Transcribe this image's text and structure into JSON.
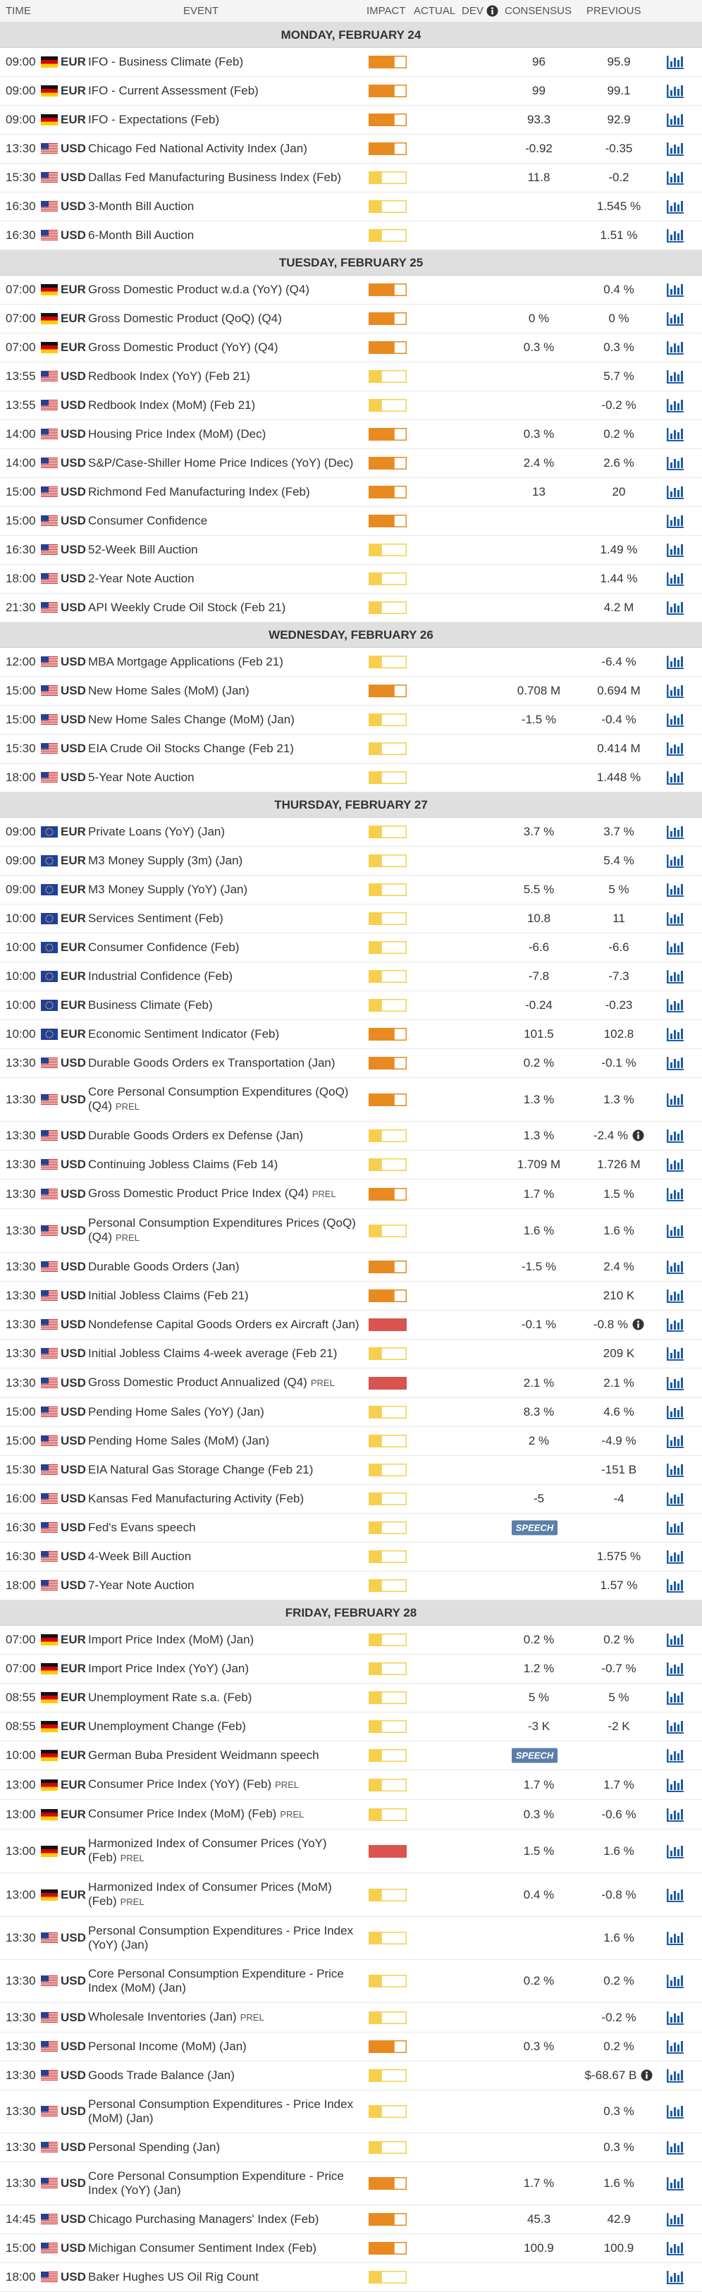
{
  "header": {
    "columns": [
      "TIME",
      "EVENT",
      "IMPACT",
      "ACTUAL",
      "DEV",
      "CONSENSUS",
      "PREVIOUS"
    ]
  },
  "days": [
    {
      "label": "MONDAY, FEBRUARY 24",
      "events": [
        {
          "t": "09:00",
          "f": "de",
          "c": "EUR",
          "n": "IFO - Business Climate (Feb)",
          "i": "medium",
          "cons": "96",
          "prev": "95.9"
        },
        {
          "t": "09:00",
          "f": "de",
          "c": "EUR",
          "n": "IFO - Current Assessment (Feb)",
          "i": "medium",
          "cons": "99",
          "prev": "99.1"
        },
        {
          "t": "09:00",
          "f": "de",
          "c": "EUR",
          "n": "IFO - Expectations (Feb)",
          "i": "medium",
          "cons": "93.3",
          "prev": "92.9"
        },
        {
          "t": "13:30",
          "f": "us",
          "c": "USD",
          "n": "Chicago Fed National Activity Index (Jan)",
          "i": "medium",
          "cons": "-0.92",
          "prev": "-0.35"
        },
        {
          "t": "15:30",
          "f": "us",
          "c": "USD",
          "n": "Dallas Fed Manufacturing Business Index (Feb)",
          "i": "low",
          "cons": "11.8",
          "prev": "-0.2"
        },
        {
          "t": "16:30",
          "f": "us",
          "c": "USD",
          "n": "3-Month Bill Auction",
          "i": "low",
          "prev": "1.545 %"
        },
        {
          "t": "16:30",
          "f": "us",
          "c": "USD",
          "n": "6-Month Bill Auction",
          "i": "low",
          "prev": "1.51 %"
        }
      ]
    },
    {
      "label": "TUESDAY, FEBRUARY 25",
      "events": [
        {
          "t": "07:00",
          "f": "de",
          "c": "EUR",
          "n": "Gross Domestic Product w.d.a (YoY) (Q4)",
          "i": "medium",
          "prev": "0.4 %"
        },
        {
          "t": "07:00",
          "f": "de",
          "c": "EUR",
          "n": "Gross Domestic Product (QoQ) (Q4)",
          "i": "medium",
          "cons": "0 %",
          "prev": "0 %"
        },
        {
          "t": "07:00",
          "f": "de",
          "c": "EUR",
          "n": "Gross Domestic Product (YoY) (Q4)",
          "i": "medium",
          "cons": "0.3 %",
          "prev": "0.3 %"
        },
        {
          "t": "13:55",
          "f": "us",
          "c": "USD",
          "n": "Redbook Index (YoY) (Feb 21)",
          "i": "low",
          "prev": "5.7 %"
        },
        {
          "t": "13:55",
          "f": "us",
          "c": "USD",
          "n": "Redbook Index (MoM) (Feb 21)",
          "i": "low",
          "prev": "-0.2 %"
        },
        {
          "t": "14:00",
          "f": "us",
          "c": "USD",
          "n": "Housing Price Index (MoM) (Dec)",
          "i": "medium",
          "cons": "0.3 %",
          "prev": "0.2 %"
        },
        {
          "t": "14:00",
          "f": "us",
          "c": "USD",
          "n": "S&P/Case-Shiller Home Price Indices (YoY) (Dec)",
          "i": "medium",
          "cons": "2.4 %",
          "prev": "2.6 %"
        },
        {
          "t": "15:00",
          "f": "us",
          "c": "USD",
          "n": "Richmond Fed Manufacturing Index (Feb)",
          "i": "medium",
          "cons": "13",
          "prev": "20"
        },
        {
          "t": "15:00",
          "f": "us",
          "c": "USD",
          "n": "Consumer Confidence",
          "i": "medium"
        },
        {
          "t": "16:30",
          "f": "us",
          "c": "USD",
          "n": "52-Week Bill Auction",
          "i": "low",
          "prev": "1.49 %"
        },
        {
          "t": "18:00",
          "f": "us",
          "c": "USD",
          "n": "2-Year Note Auction",
          "i": "low",
          "prev": "1.44 %"
        },
        {
          "t": "21:30",
          "f": "us",
          "c": "USD",
          "n": "API Weekly Crude Oil Stock (Feb 21)",
          "i": "low",
          "prev": "4.2 M"
        }
      ]
    },
    {
      "label": "WEDNESDAY, FEBRUARY 26",
      "events": [
        {
          "t": "12:00",
          "f": "us",
          "c": "USD",
          "n": "MBA Mortgage Applications (Feb 21)",
          "i": "low",
          "prev": "-6.4 %"
        },
        {
          "t": "15:00",
          "f": "us",
          "c": "USD",
          "n": "New Home Sales (MoM) (Jan)",
          "i": "medium",
          "cons": "0.708 M",
          "prev": "0.694 M"
        },
        {
          "t": "15:00",
          "f": "us",
          "c": "USD",
          "n": "New Home Sales Change (MoM) (Jan)",
          "i": "low",
          "cons": "-1.5 %",
          "prev": "-0.4 %"
        },
        {
          "t": "15:30",
          "f": "us",
          "c": "USD",
          "n": "EIA Crude Oil Stocks Change (Feb 21)",
          "i": "low",
          "prev": "0.414 M"
        },
        {
          "t": "18:00",
          "f": "us",
          "c": "USD",
          "n": "5-Year Note Auction",
          "i": "low",
          "prev": "1.448 %"
        }
      ]
    },
    {
      "label": "THURSDAY, FEBRUARY 27",
      "events": [
        {
          "t": "09:00",
          "f": "eu",
          "c": "EUR",
          "n": "Private Loans (YoY) (Jan)",
          "i": "low",
          "cons": "3.7 %",
          "prev": "3.7 %"
        },
        {
          "t": "09:00",
          "f": "eu",
          "c": "EUR",
          "n": "M3 Money Supply (3m) (Jan)",
          "i": "low",
          "prev": "5.4 %"
        },
        {
          "t": "09:00",
          "f": "eu",
          "c": "EUR",
          "n": "M3 Money Supply (YoY) (Jan)",
          "i": "low",
          "cons": "5.5 %",
          "prev": "5 %"
        },
        {
          "t": "10:00",
          "f": "eu",
          "c": "EUR",
          "n": "Services Sentiment (Feb)",
          "i": "low",
          "cons": "10.8",
          "prev": "11"
        },
        {
          "t": "10:00",
          "f": "eu",
          "c": "EUR",
          "n": "Consumer Confidence (Feb)",
          "i": "low",
          "cons": "-6.6",
          "prev": "-6.6"
        },
        {
          "t": "10:00",
          "f": "eu",
          "c": "EUR",
          "n": "Industrial Confidence (Feb)",
          "i": "low",
          "cons": "-7.8",
          "prev": "-7.3"
        },
        {
          "t": "10:00",
          "f": "eu",
          "c": "EUR",
          "n": "Business Climate (Feb)",
          "i": "low",
          "cons": "-0.24",
          "prev": "-0.23"
        },
        {
          "t": "10:00",
          "f": "eu",
          "c": "EUR",
          "n": "Economic Sentiment Indicator (Feb)",
          "i": "medium",
          "cons": "101.5",
          "prev": "102.8"
        },
        {
          "t": "13:30",
          "f": "us",
          "c": "USD",
          "n": "Durable Goods Orders ex Transportation (Jan)",
          "i": "medium",
          "cons": "0.2 %",
          "prev": "-0.1 %"
        },
        {
          "t": "13:30",
          "f": "us",
          "c": "USD",
          "n": "Core Personal Consumption Expenditures (QoQ) (Q4)",
          "tag": "PREL",
          "i": "medium",
          "cons": "1.3 %",
          "prev": "1.3 %"
        },
        {
          "t": "13:30",
          "f": "us",
          "c": "USD",
          "n": "Durable Goods Orders ex Defense (Jan)",
          "i": "low",
          "cons": "1.3 %",
          "prev": "-2.4 %",
          "info": true
        },
        {
          "t": "13:30",
          "f": "us",
          "c": "USD",
          "n": "Continuing Jobless Claims (Feb 14)",
          "i": "low",
          "cons": "1.709 M",
          "prev": "1.726 M"
        },
        {
          "t": "13:30",
          "f": "us",
          "c": "USD",
          "n": "Gross Domestic Product Price Index (Q4)",
          "tag": "PREL",
          "i": "medium",
          "cons": "1.7 %",
          "prev": "1.5 %"
        },
        {
          "t": "13:30",
          "f": "us",
          "c": "USD",
          "n": "Personal Consumption Expenditures Prices (QoQ) (Q4)",
          "tag": "PREL",
          "i": "low",
          "cons": "1.6 %",
          "prev": "1.6 %"
        },
        {
          "t": "13:30",
          "f": "us",
          "c": "USD",
          "n": "Durable Goods Orders (Jan)",
          "i": "medium",
          "cons": "-1.5 %",
          "prev": "2.4 %"
        },
        {
          "t": "13:30",
          "f": "us",
          "c": "USD",
          "n": "Initial Jobless Claims (Feb 21)",
          "i": "medium",
          "prev": "210 K"
        },
        {
          "t": "13:30",
          "f": "us",
          "c": "USD",
          "n": "Nondefense Capital Goods Orders ex Aircraft (Jan)",
          "i": "high",
          "cons": "-0.1 %",
          "prev": "-0.8 %",
          "info": true
        },
        {
          "t": "13:30",
          "f": "us",
          "c": "USD",
          "n": "Initial Jobless Claims 4-week average (Feb 21)",
          "i": "low",
          "prev": "209 K"
        },
        {
          "t": "13:30",
          "f": "us",
          "c": "USD",
          "n": "Gross Domestic Product Annualized (Q4)",
          "tag": "PREL",
          "i": "high",
          "cons": "2.1 %",
          "prev": "2.1 %"
        },
        {
          "t": "15:00",
          "f": "us",
          "c": "USD",
          "n": "Pending Home Sales (YoY) (Jan)",
          "i": "low",
          "cons": "8.3 %",
          "prev": "4.6 %"
        },
        {
          "t": "15:00",
          "f": "us",
          "c": "USD",
          "n": "Pending Home Sales (MoM) (Jan)",
          "i": "low",
          "cons": "2 %",
          "prev": "-4.9 %"
        },
        {
          "t": "15:30",
          "f": "us",
          "c": "USD",
          "n": "EIA Natural Gas Storage Change (Feb 21)",
          "i": "low",
          "prev": "-151 B"
        },
        {
          "t": "16:00",
          "f": "us",
          "c": "USD",
          "n": "Kansas Fed Manufacturing Activity (Feb)",
          "i": "low",
          "cons": "-5",
          "prev": "-4"
        },
        {
          "t": "16:30",
          "f": "us",
          "c": "USD",
          "n": "Fed's Evans speech",
          "i": "low",
          "badge": "SPEECH"
        },
        {
          "t": "16:30",
          "f": "us",
          "c": "USD",
          "n": "4-Week Bill Auction",
          "i": "low",
          "prev": "1.575 %"
        },
        {
          "t": "18:00",
          "f": "us",
          "c": "USD",
          "n": "7-Year Note Auction",
          "i": "low",
          "prev": "1.57 %"
        }
      ]
    },
    {
      "label": "FRIDAY, FEBRUARY 28",
      "events": [
        {
          "t": "07:00",
          "f": "de",
          "c": "EUR",
          "n": "Import Price Index (MoM) (Jan)",
          "i": "low",
          "cons": "0.2 %",
          "prev": "0.2 %"
        },
        {
          "t": "07:00",
          "f": "de",
          "c": "EUR",
          "n": "Import Price Index (YoY) (Jan)",
          "i": "low",
          "cons": "1.2 %",
          "prev": "-0.7 %"
        },
        {
          "t": "08:55",
          "f": "de",
          "c": "EUR",
          "n": "Unemployment Rate s.a. (Feb)",
          "i": "low",
          "cons": "5 %",
          "prev": "5 %"
        },
        {
          "t": "08:55",
          "f": "de",
          "c": "EUR",
          "n": "Unemployment Change (Feb)",
          "i": "low",
          "cons": "-3 K",
          "prev": "-2 K"
        },
        {
          "t": "10:00",
          "f": "de",
          "c": "EUR",
          "n": "German Buba President Weidmann speech",
          "i": "low",
          "badge": "SPEECH"
        },
        {
          "t": "13:00",
          "f": "de",
          "c": "EUR",
          "n": "Consumer Price Index (YoY) (Feb)",
          "tag": "PREL",
          "i": "low",
          "cons": "1.7 %",
          "prev": "1.7 %"
        },
        {
          "t": "13:00",
          "f": "de",
          "c": "EUR",
          "n": "Consumer Price Index (MoM) (Feb)",
          "tag": "PREL",
          "i": "low",
          "cons": "0.3 %",
          "prev": "-0.6 %"
        },
        {
          "t": "13:00",
          "f": "de",
          "c": "EUR",
          "n": "Harmonized Index of Consumer Prices (YoY) (Feb)",
          "tag": "PREL",
          "i": "high",
          "cons": "1.5 %",
          "prev": "1.6 %"
        },
        {
          "t": "13:00",
          "f": "de",
          "c": "EUR",
          "n": "Harmonized Index of Consumer Prices (MoM) (Feb)",
          "tag": "PREL",
          "i": "low",
          "cons": "0.4 %",
          "prev": "-0.8 %"
        },
        {
          "t": "13:30",
          "f": "us",
          "c": "USD",
          "n": "Personal Consumption Expenditures - Price Index (YoY) (Jan)",
          "i": "low",
          "prev": "1.6 %"
        },
        {
          "t": "13:30",
          "f": "us",
          "c": "USD",
          "n": "Core Personal Consumption Expenditure - Price Index (MoM) (Jan)",
          "i": "low",
          "cons": "0.2 %",
          "prev": "0.2 %"
        },
        {
          "t": "13:30",
          "f": "us",
          "c": "USD",
          "n": "Wholesale Inventories (Jan)",
          "tag": "PREL",
          "i": "low",
          "prev": "-0.2 %"
        },
        {
          "t": "13:30",
          "f": "us",
          "c": "USD",
          "n": "Personal Income (MoM) (Jan)",
          "i": "medium",
          "cons": "0.3 %",
          "prev": "0.2 %"
        },
        {
          "t": "13:30",
          "f": "us",
          "c": "USD",
          "n": "Goods Trade Balance (Jan)",
          "i": "low",
          "prev": "$-68.67 B",
          "info": true
        },
        {
          "t": "13:30",
          "f": "us",
          "c": "USD",
          "n": "Personal Consumption Expenditures - Price Index (MoM) (Jan)",
          "i": "low",
          "prev": "0.3 %"
        },
        {
          "t": "13:30",
          "f": "us",
          "c": "USD",
          "n": "Personal Spending (Jan)",
          "i": "low",
          "prev": "0.3 %"
        },
        {
          "t": "13:30",
          "f": "us",
          "c": "USD",
          "n": "Core Personal Consumption Expenditure - Price Index (YoY) (Jan)",
          "i": "medium",
          "cons": "1.7 %",
          "prev": "1.6 %"
        },
        {
          "t": "14:45",
          "f": "us",
          "c": "USD",
          "n": "Chicago Purchasing Managers' Index (Feb)",
          "i": "medium",
          "cons": "45.3",
          "prev": "42.9"
        },
        {
          "t": "15:00",
          "f": "us",
          "c": "USD",
          "n": "Michigan Consumer Sentiment Index (Feb)",
          "i": "medium",
          "cons": "100.9",
          "prev": "100.9"
        },
        {
          "t": "18:00",
          "f": "us",
          "c": "USD",
          "n": "Baker Hughes US Oil Rig Count",
          "i": "low"
        }
      ]
    }
  ]
}
